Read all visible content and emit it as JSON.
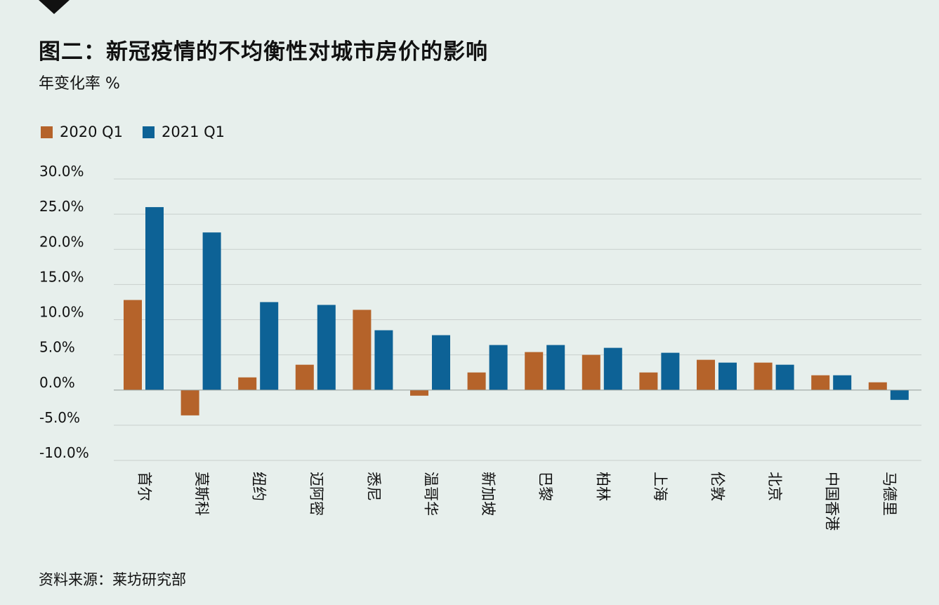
{
  "header": {
    "title": "图二：新冠疫情的不均衡性对城市房价的影响",
    "subtitle": "年变化率 %"
  },
  "footer": {
    "source": "资料来源：莱坊研究部"
  },
  "colors": {
    "series_2020": "#b5632a",
    "series_2021": "#0d6296",
    "grid": "#c9cfcd",
    "background": "#e7efec"
  },
  "chart_data": {
    "type": "bar",
    "title": "图二：新冠疫情的不均衡性对城市房价的影响",
    "subtitle": "年变化率 %",
    "xlabel": "",
    "ylabel": "",
    "ylim": [
      -10,
      30
    ],
    "yticks": [
      30,
      25,
      20,
      15,
      10,
      5,
      0,
      -5,
      -10
    ],
    "ytick_labels": [
      "30.0%",
      "25.0%",
      "20.0%",
      "15.0%",
      "10.0%",
      "5.0%",
      "0.0%",
      "-5.0%",
      "-10.0%"
    ],
    "grid": true,
    "legend_position": "top-left",
    "categories": [
      "首尔",
      "莫斯科",
      "纽约",
      "迈阿密",
      "悉尼",
      "温哥华",
      "新加坡",
      "巴黎",
      "柏林",
      "上海",
      "伦敦",
      "北京",
      "中国香港",
      "马德里"
    ],
    "series": [
      {
        "name": "2020 Q1",
        "values": [
          12.8,
          -3.6,
          1.8,
          3.6,
          11.4,
          -0.8,
          2.5,
          5.4,
          5.0,
          2.5,
          4.3,
          3.9,
          2.1,
          1.1
        ]
      },
      {
        "name": "2021 Q1",
        "values": [
          26.0,
          22.4,
          12.5,
          12.1,
          8.5,
          7.8,
          6.4,
          6.4,
          6.0,
          5.3,
          3.9,
          3.6,
          2.1,
          -1.4
        ]
      }
    ]
  }
}
